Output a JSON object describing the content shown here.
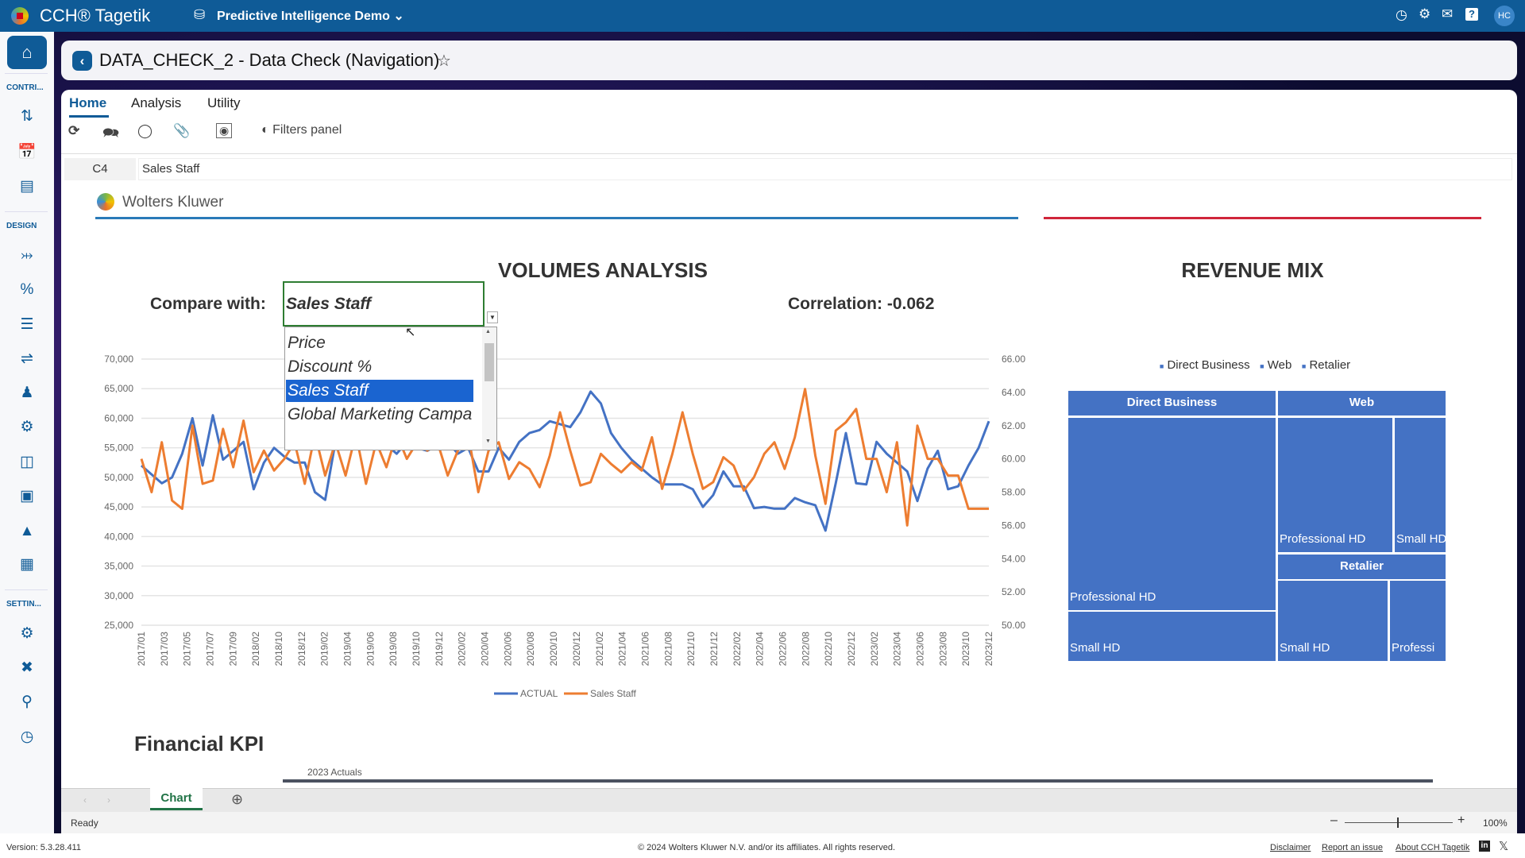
{
  "app": {
    "name": "CCH® Tagetik",
    "workspace": "Predictive Intelligence Demo",
    "avatar": "HC"
  },
  "sidebar": {
    "sections": [
      "CONTRI...",
      "DESIGN",
      "SETTIN..."
    ]
  },
  "page": {
    "title": "DATA_CHECK_2 - Data Check (Navigation)"
  },
  "tabs": [
    "Home",
    "Analysis",
    "Utility"
  ],
  "toolbar": {
    "filters_label": "Filters panel"
  },
  "formula": {
    "cell": "C4",
    "value": "Sales Staff"
  },
  "sheet": {
    "logo_text": "Wolters Kluwer",
    "volumes_title": "VOLUMES ANALYSIS",
    "compare_label": "Compare with:",
    "compare_value": "Sales Staff",
    "options": [
      "Price",
      "Discount %",
      "Sales Staff",
      "Global Marketing Campa"
    ],
    "selected_option": 2,
    "correlation": "Correlation: -0.062",
    "revenue_title": "REVENUE MIX",
    "financial_title": "Financial KPI",
    "kpi_sub": "2023 Actuals"
  },
  "treemap": {
    "legend": [
      "Direct Business",
      "Web",
      "Retalier"
    ],
    "headers": [
      "Direct Business",
      "Web",
      "Retalier"
    ],
    "cells": [
      "Professional HD",
      "Small HD",
      "Professional HD",
      "Small HD",
      "Small HD",
      "Professi"
    ],
    "color": "#4472c4"
  },
  "chart_data": {
    "type": "line",
    "title": "VOLUMES ANALYSIS",
    "left_ylim": [
      25000,
      70000
    ],
    "right_ylim": [
      50,
      66
    ],
    "left_ticks": [
      "70,000",
      "65,000",
      "60,000",
      "55,000",
      "50,000",
      "45,000",
      "40,000",
      "35,000",
      "30,000",
      "25,000"
    ],
    "right_ticks": [
      "66.00",
      "64.00",
      "62.00",
      "60.00",
      "58.00",
      "56.00",
      "54.00",
      "52.00",
      "50.00"
    ],
    "x_tick_labels": [
      "2017/01",
      "2017/03",
      "2017/05",
      "2017/07",
      "2017/09",
      "2018/02",
      "2018/10",
      "2018/12",
      "2019/02",
      "2019/04",
      "2019/06",
      "2019/08",
      "2019/10",
      "2019/12",
      "2020/02",
      "2020/04",
      "2020/06",
      "2020/08",
      "2020/10",
      "2020/12",
      "2021/02",
      "2021/04",
      "2021/06",
      "2021/08",
      "2021/10",
      "2021/12",
      "2022/02",
      "2022/04",
      "2022/06",
      "2022/08",
      "2022/10",
      "2022/12",
      "2023/02",
      "2023/04",
      "2023/06",
      "2023/08",
      "2023/10",
      "2023/12"
    ],
    "x_range": [
      "2017/01",
      "2023/12"
    ],
    "series": [
      {
        "name": "ACTUAL",
        "axis": "left",
        "color": "#4472c4",
        "values": [
          52000,
          50500,
          49000,
          50000,
          54000,
          60000,
          52000,
          60500,
          53000,
          54500,
          56000,
          48000,
          52500,
          55000,
          53500,
          52500,
          52500,
          47500,
          46200,
          56000,
          57500,
          55000,
          56500,
          57000,
          55500,
          54000,
          56000,
          55000,
          54500,
          55500,
          56000,
          54000,
          55000,
          51000,
          51000,
          55000,
          53000,
          56000,
          57500,
          58000,
          59500,
          59000,
          58500,
          61000,
          64500,
          62500,
          57500,
          55000,
          53000,
          51500,
          50000,
          48800,
          48800,
          48800,
          48000,
          45000,
          47000,
          51000,
          48500,
          48500,
          44800,
          45000,
          44700,
          44700,
          46500,
          45800,
          45300,
          41000,
          49000,
          57500,
          49000,
          48800,
          56000,
          54000,
          52500,
          51000,
          46000,
          51500,
          54500,
          48000,
          48500,
          52000,
          55000,
          59500
        ]
      },
      {
        "name": "Sales Staff",
        "axis": "right",
        "color": "#ed7d31",
        "values": [
          60,
          58,
          61,
          57.5,
          57,
          62,
          58.5,
          58.7,
          61.8,
          59.5,
          62.3,
          59.2,
          60.5,
          59.3,
          60,
          61,
          58.5,
          61.5,
          59,
          61,
          59,
          61.5,
          58.5,
          61,
          59.5,
          61.5,
          60,
          61,
          60.5,
          61,
          59,
          60.5,
          61.5,
          58,
          60.5,
          61,
          58.8,
          59.8,
          59.4,
          58.3,
          60.2,
          62.8,
          60.5,
          58.4,
          58.6,
          60.3,
          59.7,
          59.2,
          59.8,
          59.3,
          61.3,
          58.2,
          60.3,
          62.8,
          60.3,
          58.2,
          58.6,
          60.1,
          59.6,
          58.1,
          58.9,
          60.3,
          61,
          59.4,
          61.3,
          64.2,
          60.2,
          57.3,
          61.7,
          62.2,
          63,
          60,
          60,
          58,
          61,
          56,
          62,
          60,
          60,
          59,
          59,
          57,
          57,
          57
        ]
      }
    ],
    "legend": [
      "ACTUAL",
      "Sales Staff"
    ],
    "legend_position": "bottom",
    "grid": true
  },
  "bottom": {
    "sheet_tab": "Chart",
    "status": "Ready",
    "zoom": "100%"
  },
  "footer": {
    "version": "Version: 5.3.28.411",
    "copyright": "© 2024 Wolters Kluwer N.V. and/or its affiliates. All rights reserved.",
    "links": [
      "Disclaimer",
      "Report an issue",
      "About CCH Tagetik"
    ]
  }
}
